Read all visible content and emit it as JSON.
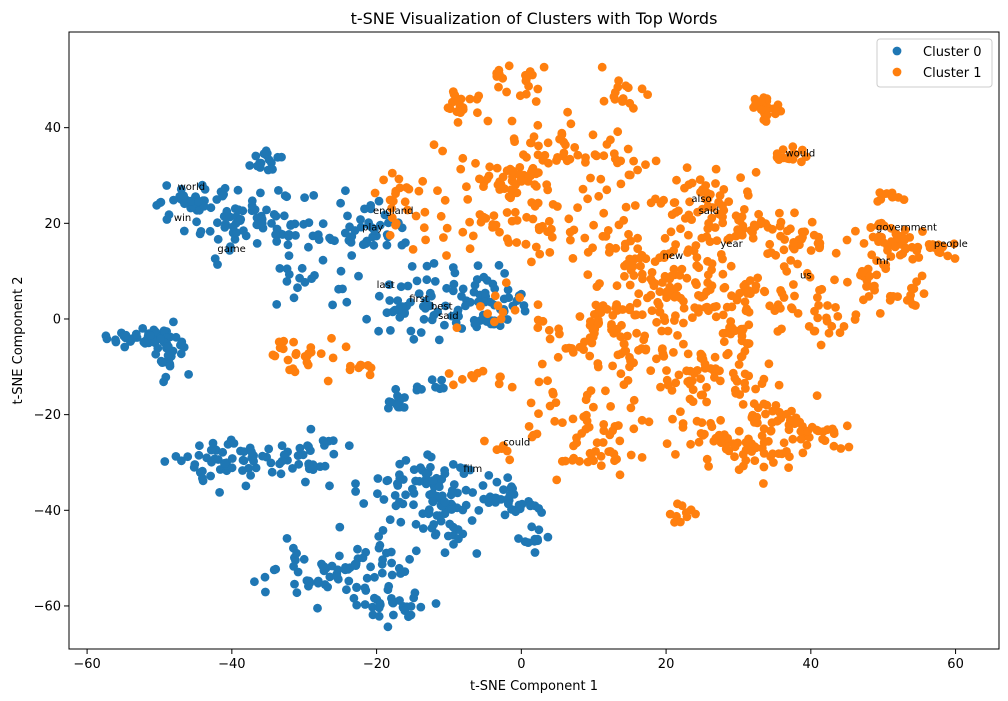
{
  "chart_data": {
    "type": "scatter",
    "title": "t-SNE Visualization of Clusters with Top Words",
    "xlabel": "t-SNE Component 1",
    "ylabel": "t-SNE Component 2",
    "xlim": [
      -62.5,
      66
    ],
    "ylim": [
      -69,
      60
    ],
    "xticks": [
      -60,
      -40,
      -20,
      0,
      20,
      40,
      60
    ],
    "yticks": [
      -60,
      -40,
      -20,
      0,
      20,
      40
    ],
    "grid": false,
    "legend_position": "top-right",
    "series": [
      {
        "name": "Cluster 0",
        "color": "#1f77b4",
        "clusters": [
          {
            "cx": -52,
            "cy": -4,
            "sx": 2.5,
            "sy": 1.2,
            "n": 45
          },
          {
            "cx": -49,
            "cy": -8,
            "sx": 1.5,
            "sy": 3,
            "n": 25
          },
          {
            "cx": -45,
            "cy": 23,
            "sx": 2.5,
            "sy": 2.5,
            "n": 45
          },
          {
            "cx": -36,
            "cy": 21,
            "sx": 3.5,
            "sy": 4,
            "n": 55
          },
          {
            "cx": -35,
            "cy": 33,
            "sx": 1.5,
            "sy": 1,
            "n": 15
          },
          {
            "cx": -27,
            "cy": 17,
            "sx": 4,
            "sy": 2,
            "n": 30
          },
          {
            "cx": -30,
            "cy": 7,
            "sx": 3,
            "sy": 3,
            "n": 15
          },
          {
            "cx": -20,
            "cy": 19,
            "sx": 2.5,
            "sy": 3,
            "n": 25
          },
          {
            "cx": -14,
            "cy": 3,
            "sx": 5,
            "sy": 4,
            "n": 75
          },
          {
            "cx": -5,
            "cy": 5,
            "sx": 3,
            "sy": 3,
            "n": 35
          },
          {
            "cx": -17,
            "cy": -18,
            "sx": 1,
            "sy": 1,
            "n": 14
          },
          {
            "cx": -39,
            "cy": -30,
            "sx": 4,
            "sy": 2.5,
            "n": 60
          },
          {
            "cx": -28,
            "cy": -29,
            "sx": 3,
            "sy": 3,
            "n": 25
          },
          {
            "cx": -12,
            "cy": -36,
            "sx": 5,
            "sy": 4,
            "n": 95
          },
          {
            "cx": -1,
            "cy": -38,
            "sx": 2.5,
            "sy": 2,
            "n": 25
          },
          {
            "cx": 1,
            "cy": -46,
            "sx": 1.5,
            "sy": 1.5,
            "n": 10
          },
          {
            "cx": -28,
            "cy": -53,
            "sx": 4,
            "sy": 3,
            "n": 50
          },
          {
            "cx": -21,
            "cy": -53,
            "sx": 3,
            "sy": 3,
            "n": 30
          },
          {
            "cx": -18,
            "cy": -60,
            "sx": 2,
            "sy": 1.5,
            "n": 25
          },
          {
            "cx": -11,
            "cy": -45,
            "sx": 3,
            "sy": 3,
            "n": 20
          },
          {
            "cx": -12,
            "cy": -14,
            "sx": 0.6,
            "sy": 0.8,
            "n": 5
          },
          {
            "cx": -14,
            "cy": -15,
            "sx": 0.4,
            "sy": 0.5,
            "n": 3
          }
        ]
      },
      {
        "name": "Cluster 1",
        "color": "#ff7f0e",
        "clusters": [
          {
            "cx": -30,
            "cy": -8,
            "sx": 2.5,
            "sy": 2,
            "n": 25
          },
          {
            "cx": -22,
            "cy": -10,
            "sx": 0.8,
            "sy": 0.8,
            "n": 8
          },
          {
            "cx": -18,
            "cy": 25,
            "sx": 2,
            "sy": 2.5,
            "n": 15
          },
          {
            "cx": -8,
            "cy": 45,
            "sx": 2,
            "sy": 2,
            "n": 20
          },
          {
            "cx": -5,
            "cy": 24,
            "sx": 5,
            "sy": 7,
            "n": 70
          },
          {
            "cx": 1,
            "cy": 29,
            "sx": 1.5,
            "sy": 1.5,
            "n": 25
          },
          {
            "cx": 0,
            "cy": 50,
            "sx": 2,
            "sy": 2,
            "n": 20
          },
          {
            "cx": 4,
            "cy": 37,
            "sx": 3,
            "sy": 3,
            "n": 30
          },
          {
            "cx": 9,
            "cy": 20,
            "sx": 5,
            "sy": 5,
            "n": 40
          },
          {
            "cx": 14,
            "cy": 48,
            "sx": 2,
            "sy": 2,
            "n": 15
          },
          {
            "cx": 14,
            "cy": 32,
            "sx": 3,
            "sy": 4,
            "n": 25
          },
          {
            "cx": 13,
            "cy": -2,
            "sx": 5,
            "sy": 5,
            "n": 90
          },
          {
            "cx": 8,
            "cy": -22,
            "sx": 5,
            "sy": 6,
            "n": 50
          },
          {
            "cx": 11,
            "cy": -29,
            "sx": 2,
            "sy": 1,
            "n": 12
          },
          {
            "cx": 18,
            "cy": 12,
            "sx": 4,
            "sy": 4,
            "n": 50
          },
          {
            "cx": 19,
            "cy": -12,
            "sx": 4,
            "sy": 5,
            "n": 40
          },
          {
            "cx": 22,
            "cy": -40,
            "sx": 1,
            "sy": 1.5,
            "n": 10
          },
          {
            "cx": 25,
            "cy": 22,
            "sx": 3,
            "sy": 3,
            "n": 35
          },
          {
            "cx": 24,
            "cy": 6,
            "sx": 4,
            "sy": 4,
            "n": 45
          },
          {
            "cx": 28,
            "cy": -10,
            "sx": 3,
            "sy": 5,
            "n": 45
          },
          {
            "cx": 27,
            "cy": -25,
            "sx": 3,
            "sy": 3,
            "n": 25
          },
          {
            "cx": 32,
            "cy": -28,
            "sx": 3,
            "sy": 3,
            "n": 35
          },
          {
            "cx": 34,
            "cy": 44,
            "sx": 1,
            "sy": 1.5,
            "n": 22
          },
          {
            "cx": 37,
            "cy": 34,
            "sx": 2,
            "sy": 1,
            "n": 15
          },
          {
            "cx": 33,
            "cy": 19,
            "sx": 4,
            "sy": 3,
            "n": 40
          },
          {
            "cx": 32,
            "cy": 5,
            "sx": 4,
            "sy": 3,
            "n": 40
          },
          {
            "cx": 34,
            "cy": -18,
            "sx": 2,
            "sy": 4,
            "n": 25
          },
          {
            "cx": 39,
            "cy": 15,
            "sx": 2,
            "sy": 2,
            "n": 20
          },
          {
            "cx": 40,
            "cy": -24,
            "sx": 3,
            "sy": 2,
            "n": 30
          },
          {
            "cx": 42,
            "cy": 0,
            "sx": 3,
            "sy": 4,
            "n": 25
          },
          {
            "cx": 48,
            "cy": 8,
            "sx": 2,
            "sy": 4,
            "n": 25
          },
          {
            "cx": 52,
            "cy": 17,
            "sx": 2.5,
            "sy": 2,
            "n": 40
          },
          {
            "cx": 51,
            "cy": 26,
            "sx": 1.5,
            "sy": 0.8,
            "n": 10
          },
          {
            "cx": 57,
            "cy": 15,
            "sx": 1.5,
            "sy": 1,
            "n": 15
          },
          {
            "cx": 55,
            "cy": 5,
            "sx": 1.5,
            "sy": 2,
            "n": 12
          },
          {
            "cx": 0,
            "cy": 0,
            "sx": 3,
            "sy": 3,
            "n": 15
          },
          {
            "cx": -6,
            "cy": -12,
            "sx": 2,
            "sy": 1,
            "n": 10
          },
          {
            "cx": -3,
            "cy": -27,
            "sx": 1,
            "sy": 1,
            "n": 5
          },
          {
            "cx": 30,
            "cy": -2,
            "sx": 1,
            "sy": 1,
            "n": 10
          },
          {
            "cx": 25,
            "cy": 27,
            "sx": 3,
            "sy": 2,
            "n": 20
          }
        ]
      }
    ],
    "annotations": [
      {
        "text": "world",
        "x": -47.5,
        "y": 27
      },
      {
        "text": "win",
        "x": -48,
        "y": 20.5
      },
      {
        "text": "game",
        "x": -42,
        "y": 14
      },
      {
        "text": "england",
        "x": -20.5,
        "y": 22
      },
      {
        "text": "play",
        "x": -22,
        "y": 18.5
      },
      {
        "text": "last",
        "x": -20,
        "y": 6.5
      },
      {
        "text": "first",
        "x": -15.5,
        "y": 3.5
      },
      {
        "text": "best",
        "x": -12.5,
        "y": 2
      },
      {
        "text": "said",
        "x": -11.5,
        "y": 0
      },
      {
        "text": "could",
        "x": -2.5,
        "y": -26.5
      },
      {
        "text": "film",
        "x": -8,
        "y": -32
      },
      {
        "text": "also",
        "x": 23.5,
        "y": 24.5
      },
      {
        "text": "said",
        "x": 24.5,
        "y": 22
      },
      {
        "text": "would",
        "x": 36.5,
        "y": 34
      },
      {
        "text": "year",
        "x": 27.5,
        "y": 15
      },
      {
        "text": "new",
        "x": 19.5,
        "y": 12.5
      },
      {
        "text": "us",
        "x": 38.5,
        "y": 8.5
      },
      {
        "text": "government",
        "x": 49,
        "y": 18.5
      },
      {
        "text": "people",
        "x": 57,
        "y": 15
      },
      {
        "text": "mr",
        "x": 49,
        "y": 11.5
      }
    ]
  }
}
